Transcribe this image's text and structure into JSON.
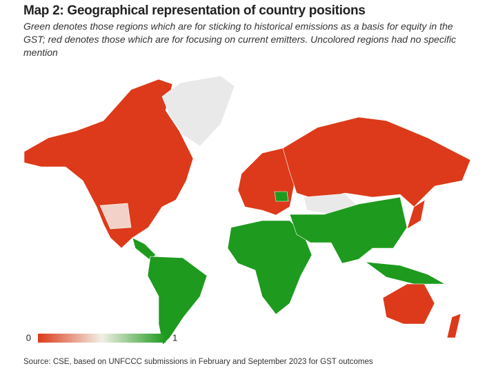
{
  "header": {
    "title": "Map 2: Geographical representation of country positions",
    "subtitle": "Green denotes those regions which are for sticking to historical emissions as a basis for equity in the GST; red denotes those which are for focusing on current emitters. Uncolored regions had no specific mention"
  },
  "legend": {
    "ticks": [
      0,
      1
    ],
    "colors": [
      "#dc3a1a",
      "#f2efe6",
      "#1e9a1e"
    ]
  },
  "source": "Source: CSE, based on UNFCCC submissions in February and September 2023 for GST outcomes"
}
